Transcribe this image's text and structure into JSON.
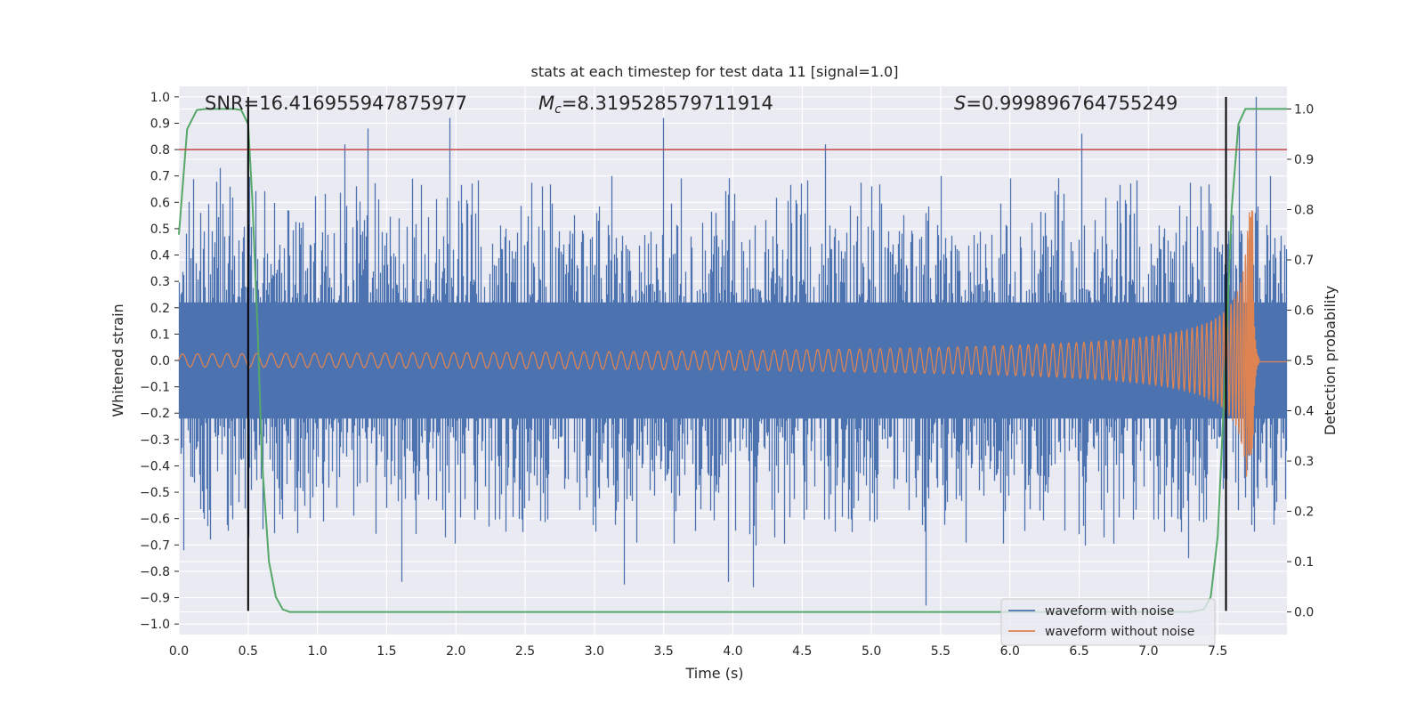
{
  "chart_data": {
    "type": "line",
    "title": "stats at each timestep for test data 11 [signal=1.0]",
    "xlabel": "Time (s)",
    "ylabel": "Whitened strain",
    "y2label": "Detection probability",
    "xlim": [
      0.0,
      8.0
    ],
    "ylim": [
      -1.04,
      1.04
    ],
    "y2lim": [
      -0.045,
      1.045
    ],
    "xticks": [
      "0.0",
      "0.5",
      "1.0",
      "1.5",
      "2.0",
      "2.5",
      "3.0",
      "3.5",
      "4.0",
      "4.5",
      "5.0",
      "5.5",
      "6.0",
      "6.5",
      "7.0",
      "7.5"
    ],
    "yticks": [
      "1.0",
      "0.9",
      "0.8",
      "0.7",
      "0.6",
      "0.5",
      "0.4",
      "0.3",
      "0.2",
      "0.1",
      "0.0",
      "−0.1",
      "−0.2",
      "−0.3",
      "−0.4",
      "−0.5",
      "−0.6",
      "−0.7",
      "−0.8",
      "−0.9",
      "−1.0"
    ],
    "y2ticks": [
      "1.0",
      "0.9",
      "0.8",
      "0.7",
      "0.6",
      "0.5",
      "0.4",
      "0.3",
      "0.2",
      "0.1",
      "0.0"
    ],
    "grid": true,
    "legend_position": "lower-right",
    "annotations": {
      "snr_text": "SNR=16.416955947875977",
      "mc_symbol": "M",
      "mc_sub": "c",
      "mc_value": "=8.319528579711914",
      "s_symbol": "S",
      "s_value": "=0.999896764755249"
    },
    "threshold_y": 0.8,
    "vertical_lines_x": [
      0.5,
      7.56
    ],
    "series": [
      {
        "name": "waveform with noise",
        "color": "#4c72b0",
        "envelope_typical": 0.3,
        "spike_extremes": [
          [
            0.04,
            -0.72
          ],
          [
            0.3,
            0.73
          ],
          [
            0.5,
            0.78
          ],
          [
            0.61,
            -0.64
          ],
          [
            1.2,
            0.82
          ],
          [
            1.37,
            0.88
          ],
          [
            1.61,
            -0.84
          ],
          [
            1.96,
            0.92
          ],
          [
            2.24,
            -0.63
          ],
          [
            3.5,
            0.92
          ],
          [
            3.22,
            -0.85
          ],
          [
            3.97,
            -0.84
          ],
          [
            4.15,
            -0.86
          ],
          [
            4.67,
            0.82
          ],
          [
            5.4,
            -0.93
          ],
          [
            6.52,
            0.86
          ],
          [
            7.29,
            -0.75
          ],
          [
            7.56,
            -0.8
          ],
          [
            7.66,
            0.89
          ],
          [
            7.78,
            1.0
          ]
        ]
      },
      {
        "name": "waveform without noise",
        "color": "#dd8452",
        "start_amplitude": 0.025,
        "merger_time": 7.75,
        "peak_positive": 0.57,
        "peak_negative": -0.36
      },
      {
        "name": "detection probability",
        "color": "#55a868",
        "axis": "right",
        "x": [
          0.0,
          0.02,
          0.06,
          0.13,
          0.2,
          0.3,
          0.4,
          0.45,
          0.5,
          0.53,
          0.57,
          0.6,
          0.65,
          0.7,
          0.75,
          0.8,
          1.0,
          2.0,
          4.0,
          6.0,
          7.0,
          7.3,
          7.4,
          7.45,
          7.5,
          7.55,
          7.6,
          7.65,
          7.7,
          7.75,
          7.8,
          8.0
        ],
        "values": [
          0.75,
          0.82,
          0.96,
          0.998,
          1.0,
          1.0,
          1.0,
          0.998,
          0.97,
          0.82,
          0.55,
          0.3,
          0.1,
          0.03,
          0.005,
          0.0,
          0.0,
          0.0,
          0.0,
          0.0,
          0.0,
          0.0,
          0.005,
          0.03,
          0.15,
          0.45,
          0.8,
          0.97,
          1.0,
          1.0,
          1.0,
          1.0
        ]
      }
    ]
  }
}
